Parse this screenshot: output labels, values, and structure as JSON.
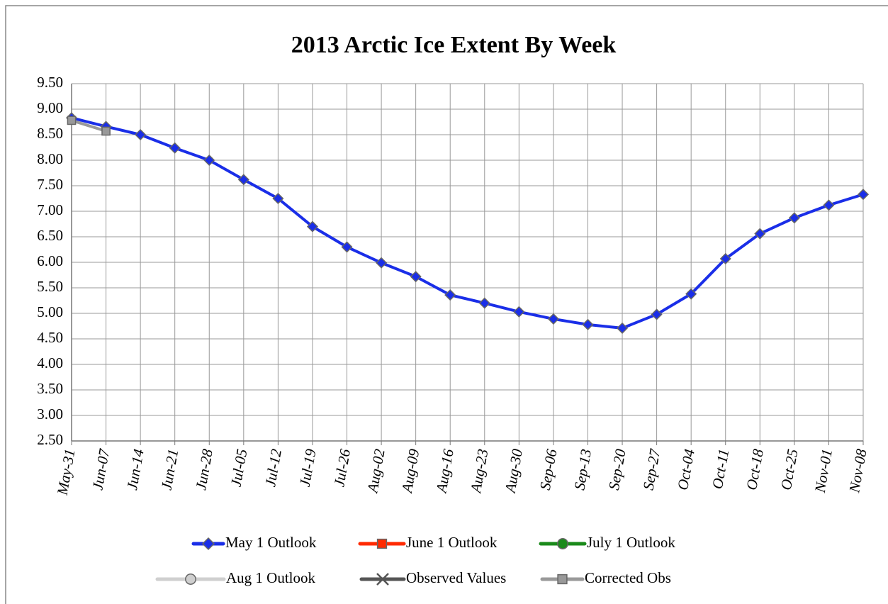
{
  "chart_data": {
    "type": "line",
    "title": "2013 Arctic Ice Extent By Week",
    "categories": [
      "May-31",
      "Jun-07",
      "Jun-14",
      "Jun-21",
      "Jun-28",
      "Jul-05",
      "Jul-12",
      "Jul-19",
      "Jul-26",
      "Aug-02",
      "Aug-09",
      "Aug-16",
      "Aug-23",
      "Aug-30",
      "Sep-06",
      "Sep-13",
      "Sep-20",
      "Sep-27",
      "Oct-04",
      "Oct-11",
      "Oct-18",
      "Oct-25",
      "Nov-01",
      "Nov-08"
    ],
    "series": [
      {
        "name": "May 1 Outlook",
        "color": "#1a2ee8",
        "marker": "diamond",
        "values": [
          8.83,
          8.66,
          8.5,
          8.24,
          8.0,
          7.62,
          7.25,
          6.7,
          6.3,
          5.99,
          5.72,
          5.36,
          5.2,
          5.03,
          4.89,
          4.78,
          4.71,
          4.98,
          5.38,
          6.07,
          6.56,
          6.87,
          7.12,
          7.33
        ]
      },
      {
        "name": "June 1 Outlook",
        "color": "#ff2a00",
        "marker": "square",
        "values": [
          null,
          null,
          null,
          null,
          null,
          null,
          null,
          null,
          null,
          null,
          null,
          null,
          null,
          null,
          null,
          null,
          null,
          null,
          null,
          null,
          null,
          null,
          null,
          null
        ]
      },
      {
        "name": "July 1 Outlook",
        "color": "#1a8a1a",
        "marker": "circle",
        "values": [
          null,
          null,
          null,
          null,
          null,
          null,
          null,
          null,
          null,
          null,
          null,
          null,
          null,
          null,
          null,
          null,
          null,
          null,
          null,
          null,
          null,
          null,
          null,
          null
        ]
      },
      {
        "name": "Aug 1 Outlook",
        "color": "#cfcfcf",
        "marker": "circle",
        "values": [
          null,
          null,
          null,
          null,
          null,
          null,
          null,
          null,
          null,
          null,
          null,
          null,
          null,
          null,
          null,
          null,
          null,
          null,
          null,
          null,
          null,
          null,
          null,
          null
        ]
      },
      {
        "name": "Observed Values",
        "color": "#555555",
        "marker": "x",
        "values": [
          null,
          null,
          null,
          null,
          null,
          null,
          null,
          null,
          null,
          null,
          null,
          null,
          null,
          null,
          null,
          null,
          null,
          null,
          null,
          null,
          null,
          null,
          null,
          null
        ]
      },
      {
        "name": "Corrected Obs",
        "color": "#999999",
        "marker": "square",
        "values": [
          8.78,
          8.57,
          null,
          null,
          null,
          null,
          null,
          null,
          null,
          null,
          null,
          null,
          null,
          null,
          null,
          null,
          null,
          null,
          null,
          null,
          null,
          null,
          null,
          null
        ]
      }
    ],
    "ylim": [
      2.5,
      9.5
    ],
    "yticks": [
      {
        "value": 2.5,
        "label": "2.50"
      },
      {
        "value": 3,
        "label": "3.00"
      },
      {
        "value": 3.5,
        "label": "3.50"
      },
      {
        "value": 4,
        "label": "4.00"
      },
      {
        "value": 4.5,
        "label": "4.50"
      },
      {
        "value": 5,
        "label": "5.00"
      },
      {
        "value": 5.5,
        "label": "5.50"
      },
      {
        "value": 6,
        "label": "6.00"
      },
      {
        "value": 6.5,
        "label": "6.50"
      },
      {
        "value": 7,
        "label": "7.00"
      },
      {
        "value": 7.5,
        "label": "7.50"
      },
      {
        "value": 8,
        "label": "8.00"
      },
      {
        "value": 8.5,
        "label": "8.50"
      },
      {
        "value": 9,
        "label": "9.00"
      },
      {
        "value": 9.5,
        "label": "9.50"
      }
    ],
    "grid": true,
    "legend": "bottom"
  }
}
